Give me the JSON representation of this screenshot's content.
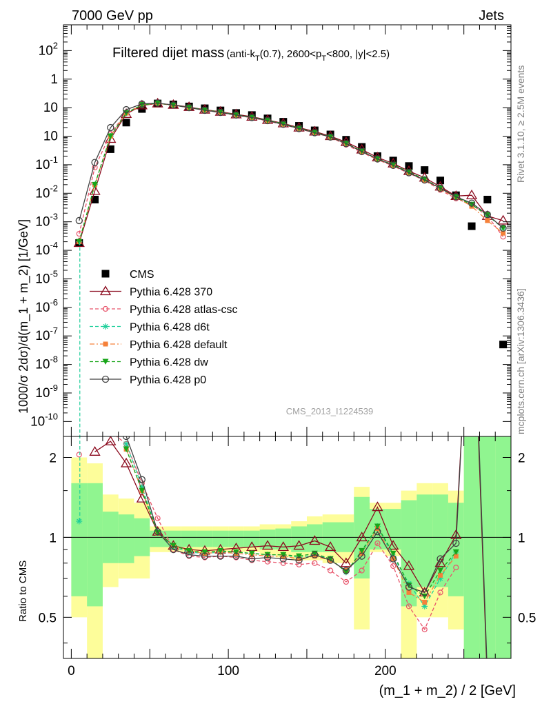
{
  "header": {
    "left": "7000 GeV pp",
    "right": "Jets"
  },
  "title": {
    "main": "Filtered dijet mass",
    "sub_1": "(anti-k",
    "sub_1_sub": "T",
    "sub_2": "(0.7), 2600<p",
    "sub_2_sub": "T",
    "sub_3": "<800, |y|<2.5)"
  },
  "side_labels": {
    "rivet": "Rivet 3.1.10, ≥ 2.5M events",
    "mcplots": "mcplots.cern.ch [arXiv:1306.3436]"
  },
  "analysis_id": "CMS_2013_I1224539",
  "colors": {
    "cms": "#000000",
    "p370": "#8b0a1e",
    "atlas": "#e8546b",
    "d6t": "#1ecf9a",
    "default": "#f5813a",
    "dw": "#19a51a",
    "p0": "#404040",
    "band_yellow": "#fdfd9a",
    "band_green": "#90f590"
  },
  "chart_data": [
    {
      "type": "scatter",
      "ylabel": "1000/σ 2dσ)/d(m_1 + m_2) [1/GeV]",
      "ylog": true,
      "ylim": [
        3e-11,
        8000
      ],
      "xlim": [
        -5,
        280
      ],
      "ytick_labels": [
        "10",
        "10",
        "10",
        "10",
        "10",
        "10",
        "10",
        "10",
        "10",
        "10",
        "10",
        "10",
        "1",
        "10",
        "10",
        "10"
      ],
      "ytick_exps": [
        "-10",
        "-9",
        "-8",
        "-7",
        "-6",
        "-5",
        "-4",
        "-3",
        "-2",
        "-1",
        "",
        "",
        "",
        "2",
        "3",
        ""
      ],
      "ytick_values": [
        1e-10,
        1e-09,
        1e-08,
        1e-07,
        1e-06,
        1e-05,
        0.0001,
        0.001,
        0.01,
        0.1,
        1,
        10,
        100,
        1000
      ],
      "x": [
        5,
        15,
        25,
        35,
        45,
        55,
        65,
        75,
        85,
        95,
        105,
        115,
        125,
        135,
        145,
        155,
        165,
        175,
        185,
        195,
        205,
        215,
        225,
        235,
        245,
        255,
        265,
        275
      ],
      "legend": {
        "placement": "middle-left",
        "entries": [
          "CMS",
          "Pythia 6.428 370",
          "Pythia 6.428 atlas-csc",
          "Pythia 6.428 d6t",
          "Pythia 6.428 default",
          "Pythia 6.428 dw",
          "Pythia 6.428 p0"
        ]
      },
      "series": [
        {
          "name": "CMS",
          "marker": "square",
          "values": [
            0.00018,
            0.006,
            0.35,
            3,
            9,
            14,
            13,
            11,
            9.5,
            8,
            6.5,
            5.5,
            4.2,
            3.2,
            2.3,
            1.6,
            1.15,
            0.75,
            0.42,
            0.2,
            0.14,
            0.09,
            0.065,
            0.028,
            0.0085,
            0.0007,
            0.006,
            5e-08
          ]
        },
        {
          "name": "Pythia 6.428 370",
          "marker": "open-triangle",
          "values": [
            0.00018,
            0.012,
            0.8,
            6,
            12,
            14,
            12.5,
            10.5,
            8.5,
            7.2,
            5.8,
            4.8,
            3.7,
            2.8,
            2,
            1.45,
            1,
            0.62,
            0.34,
            0.18,
            0.11,
            0.06,
            0.035,
            0.017,
            0.008,
            0.0085,
            0.0016,
            0.0011
          ]
        },
        {
          "name": "Pythia 6.428 atlas-csc",
          "marker": "open-circle",
          "values": [
            0.00038,
            0.08,
            1.2,
            6.8,
            12.3,
            14.2,
            12,
            10,
            8,
            6.7,
            5.4,
            4.4,
            3.4,
            2.55,
            1.82,
            1.3,
            0.92,
            0.5,
            0.27,
            0.15,
            0.09,
            0.05,
            0.028,
            0.013,
            0.0065,
            0.004,
            0.0016,
            0.0003
          ]
        },
        {
          "name": "Pythia 6.428 d6t",
          "marker": "star",
          "values": [
            0.0002,
            0.02,
            1,
            6.5,
            12.5,
            14.3,
            12.2,
            10.2,
            8.3,
            7,
            5.6,
            4.6,
            3.6,
            2.7,
            1.9,
            1.35,
            0.95,
            0.55,
            0.3,
            0.16,
            0.1,
            0.055,
            0.031,
            0.015,
            0.0075,
            0.004,
            0.0017,
            0.0006
          ]
        },
        {
          "name": "Pythia 6.428 default",
          "marker": "square-small",
          "values": [
            0.0002,
            0.02,
            1,
            6.4,
            12.4,
            14.2,
            12.1,
            10.1,
            8.2,
            6.9,
            5.5,
            4.5,
            3.5,
            2.65,
            1.88,
            1.33,
            0.93,
            0.54,
            0.29,
            0.155,
            0.095,
            0.052,
            0.029,
            0.014,
            0.0072,
            0.0035,
            0.0011,
            0.0004
          ]
        },
        {
          "name": "Pythia 6.428 dw",
          "marker": "down-triangle",
          "values": [
            0.0002,
            0.02,
            1,
            6.5,
            12.5,
            14.3,
            12.2,
            10.2,
            8.3,
            7,
            5.6,
            4.6,
            3.6,
            2.7,
            1.9,
            1.35,
            0.95,
            0.56,
            0.3,
            0.16,
            0.1,
            0.055,
            0.031,
            0.015,
            0.0073,
            0.004,
            0.0017,
            0.0006
          ]
        },
        {
          "name": "Pythia 6.428 p0",
          "marker": "open-circle-large",
          "values": [
            0.0011,
            0.12,
            2,
            8.5,
            13.5,
            14.5,
            12.3,
            10,
            8.1,
            6.8,
            5.5,
            4.5,
            3.5,
            2.6,
            1.85,
            1.32,
            0.93,
            0.55,
            0.29,
            0.16,
            0.095,
            0.052,
            0.029,
            0.015,
            0.0075,
            0.0045,
            0.0018,
            0.0006
          ]
        }
      ]
    },
    {
      "type": "line",
      "xlabel": "(m_1 + m_2) / 2 [GeV]",
      "ylabel": "Ratio to CMS",
      "ylog": true,
      "ylim": [
        0.35,
        2.4
      ],
      "xlim": [
        -5,
        280
      ],
      "ytick_labels": [
        "0.5",
        "1",
        "2"
      ],
      "ytick_values": [
        0.5,
        1,
        2
      ],
      "xtick_labels": [
        "0",
        "100",
        "200"
      ],
      "xtick_values": [
        0,
        100,
        200
      ],
      "x": [
        5,
        15,
        25,
        35,
        45,
        55,
        65,
        75,
        85,
        95,
        105,
        115,
        125,
        135,
        145,
        155,
        165,
        175,
        185,
        195,
        205,
        215,
        225,
        235,
        245,
        255,
        265,
        275
      ],
      "band_edges": [
        0,
        10,
        20,
        30,
        40,
        50,
        60,
        70,
        80,
        90,
        100,
        110,
        120,
        130,
        140,
        150,
        160,
        170,
        180,
        190,
        200,
        210,
        220,
        230,
        240,
        250,
        260,
        270,
        280
      ],
      "band_yellow_lo": [
        0.5,
        0.35,
        0.65,
        0.7,
        0.7,
        0.88,
        0.88,
        0.88,
        0.88,
        0.88,
        0.88,
        0.88,
        0.86,
        0.84,
        0.82,
        0.82,
        0.8,
        0.8,
        0.45,
        0.88,
        0.85,
        0.3,
        0.5,
        0.5,
        0.45,
        0.3,
        0.3,
        0.3
      ],
      "band_yellow_hi": [
        2.0,
        1.9,
        1.45,
        1.4,
        1.35,
        1.1,
        1.1,
        1.1,
        1.1,
        1.1,
        1.1,
        1.1,
        1.12,
        1.12,
        1.15,
        1.2,
        1.22,
        1.22,
        1.55,
        1.35,
        1.35,
        1.5,
        1.6,
        1.6,
        1.5,
        2.4,
        2.4,
        2.4
      ],
      "band_green_lo": [
        0.6,
        0.55,
        0.8,
        0.8,
        0.85,
        0.92,
        0.92,
        0.92,
        0.92,
        0.92,
        0.92,
        0.92,
        0.9,
        0.9,
        0.88,
        0.88,
        0.88,
        0.88,
        0.7,
        0.9,
        0.9,
        0.55,
        0.65,
        0.65,
        0.6,
        0.35,
        0.35,
        0.35
      ],
      "band_green_hi": [
        1.6,
        1.6,
        1.25,
        1.22,
        1.18,
        1.06,
        1.06,
        1.06,
        1.06,
        1.06,
        1.06,
        1.06,
        1.07,
        1.08,
        1.1,
        1.12,
        1.14,
        1.14,
        1.42,
        1.28,
        1.28,
        1.38,
        1.45,
        1.45,
        1.35,
        2.4,
        2.4,
        2.4
      ],
      "series": [
        {
          "name": "Pythia 6.428 370",
          "values": [
            null,
            2.1,
            2.3,
            1.9,
            1.4,
            1.05,
            0.93,
            0.9,
            0.89,
            0.9,
            0.91,
            0.92,
            0.93,
            0.92,
            0.93,
            0.97,
            0.92,
            0.8,
            1.0,
            1.3,
            0.93,
            0.78,
            0.62,
            0.8,
            1.02,
            12,
            0.28,
            null
          ]
        },
        {
          "name": "Pythia 6.428 atlas-csc",
          "values": [
            2.05,
            null,
            2.5,
            2.25,
            1.6,
            1.18,
            0.9,
            0.85,
            0.84,
            0.85,
            0.84,
            0.82,
            0.81,
            0.8,
            0.79,
            0.8,
            0.75,
            0.68,
            0.75,
            0.95,
            0.78,
            0.55,
            0.45,
            0.62,
            0.77,
            null,
            null,
            null
          ]
        },
        {
          "name": "Pythia 6.428 d6t",
          "values": [
            1.15,
            null,
            null,
            2.25,
            1.55,
            1.05,
            0.92,
            0.88,
            0.87,
            0.88,
            0.88,
            0.87,
            0.86,
            0.86,
            0.84,
            0.86,
            0.83,
            0.74,
            0.88,
            1.1,
            0.85,
            0.67,
            0.55,
            0.7,
            0.88,
            null,
            null,
            null
          ]
        },
        {
          "name": "Pythia 6.428 default",
          "values": [
            null,
            null,
            null,
            2.15,
            1.5,
            1.04,
            0.93,
            0.89,
            0.87,
            0.88,
            0.87,
            0.86,
            0.85,
            0.85,
            0.83,
            0.85,
            0.82,
            0.75,
            0.87,
            1.08,
            0.83,
            0.62,
            0.57,
            0.72,
            0.85,
            null,
            null,
            null
          ]
        },
        {
          "name": "Pythia 6.428 dw",
          "values": [
            null,
            null,
            null,
            2.15,
            1.5,
            1.04,
            0.93,
            0.89,
            0.88,
            0.89,
            0.88,
            0.87,
            0.86,
            0.86,
            0.85,
            0.87,
            0.83,
            0.74,
            0.89,
            1.1,
            0.87,
            0.66,
            0.6,
            0.75,
            0.88,
            null,
            null,
            null
          ]
        },
        {
          "name": "Pythia 6.428 p0",
          "values": [
            null,
            null,
            null,
            2.4,
            1.65,
            1.05,
            0.9,
            0.86,
            0.85,
            0.85,
            0.85,
            0.83,
            0.84,
            0.83,
            0.82,
            0.86,
            0.82,
            0.75,
            0.85,
            1.05,
            0.83,
            0.65,
            0.62,
            0.83,
            0.95,
            13,
            0.3,
            null
          ]
        }
      ]
    }
  ]
}
